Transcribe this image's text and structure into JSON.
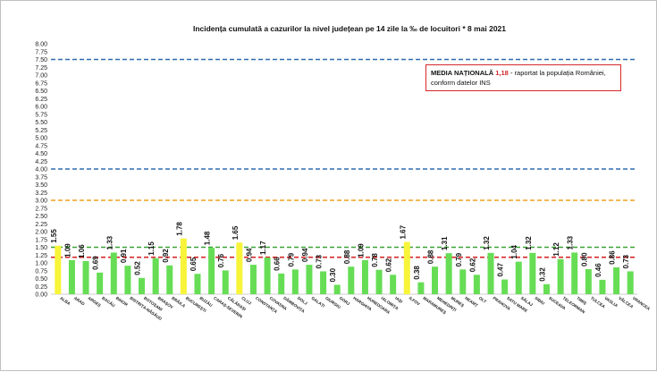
{
  "chart_data": {
    "type": "bar",
    "title": "Incidența cumulată a cazurilor la nivel județean pe 14 zile la ‰ de locuitori *   8 mai 2021",
    "xlabel": "",
    "ylabel": "",
    "ylim": [
      0,
      8
    ],
    "yticks": [
      "0.00",
      "0.25",
      "0.50",
      "0.75",
      "1.00",
      "1.25",
      "1.50",
      "1.75",
      "2.00",
      "2.25",
      "2.50",
      "2.75",
      "3.00",
      "3.25",
      "3.50",
      "3.75",
      "4.00",
      "4.25",
      "4.50",
      "4.75",
      "5.00",
      "5.25",
      "5.50",
      "5.75",
      "6.00",
      "6.25",
      "6.50",
      "6.75",
      "7.00",
      "7.25",
      "7.50",
      "7.75",
      "8.00"
    ],
    "categories": [
      "ALBA",
      "ARAD",
      "ARGEȘ",
      "BACĂU",
      "BIHOR",
      "BISTRIȚA-NĂSĂUD",
      "BOTOȘANI",
      "BRAȘOV",
      "BRĂILA",
      "BUCUREȘTI",
      "BUZĂU",
      "CARAȘ-SEVERIN",
      "CĂLĂRAȘI",
      "CLUJ",
      "CONSTANȚA",
      "COVASNA",
      "DÂMBOVIȚA",
      "DOLJ",
      "GALAȚI",
      "GIURGIU",
      "GORJ",
      "HARGHITA",
      "HUNEDOARA",
      "IALOMIȚA",
      "IAȘI",
      "ILFOV",
      "MARAMUREȘ",
      "MEHEDINȚI",
      "MUREȘ",
      "NEAMȚ",
      "OLT",
      "PRAHOVA",
      "SATU MARE",
      "SĂLAJ",
      "SIBIU",
      "SUCEAVA",
      "TELEORMAN",
      "TIMIȘ",
      "TULCEA",
      "VASLUI",
      "VÂLCEA",
      "VRANCEA"
    ],
    "values": [
      1.55,
      1.09,
      1.06,
      0.69,
      1.33,
      0.91,
      0.52,
      1.15,
      0.92,
      1.78,
      0.65,
      1.48,
      0.76,
      1.65,
      0.94,
      1.17,
      0.66,
      0.79,
      0.94,
      0.73,
      0.3,
      0.88,
      1.09,
      0.78,
      0.62,
      1.67,
      0.38,
      0.88,
      1.31,
      0.79,
      0.62,
      1.32,
      0.47,
      1.04,
      1.32,
      0.32,
      1.12,
      1.33,
      0.8,
      0.46,
      0.86,
      0.73
    ],
    "value_labels": [
      "1.55",
      "1.09",
      "1.06",
      "0.69",
      "1.33",
      "0.91",
      "0.52",
      "1.15",
      "0.92",
      "1.78",
      "0.65",
      "1.48",
      "0.76",
      "1.65",
      "0.94",
      "1.17",
      "0.66",
      "0.79",
      "0.94",
      "0.73",
      "0.30",
      "0.88",
      "1.09",
      "0.78",
      "0.62",
      "1.67",
      "0.38",
      "0.88",
      "1.31",
      "0.79",
      "0.62",
      "1.32",
      "0.47",
      "1.04",
      "1.32",
      "0.32",
      "1.12",
      "1.33",
      "0.80",
      "0.46",
      "0.86",
      "0.73"
    ],
    "highlighted": [
      "ALBA",
      "BUCUREȘTI",
      "CLUJ",
      "ILFOV"
    ],
    "colors": {
      "bar": "#66dd55",
      "highlight": "#f7f43a",
      "national_avg": "#d62728",
      "line_1_5": "#3aa335",
      "line_3": "#f0a020",
      "line_4_75": "#2e6bb0"
    },
    "reference_lines": [
      {
        "value": 1.18,
        "color": "#d62728"
      },
      {
        "value": 1.5,
        "color": "#3aa335"
      },
      {
        "value": 3.0,
        "color": "#f0a020"
      },
      {
        "value": 4.0,
        "color": "#2e6bb0"
      },
      {
        "value": 7.5,
        "color": "#2e6bb0"
      }
    ],
    "grid": false,
    "legend": "none"
  },
  "callout": {
    "label_bold": "MEDIA NAȚIONALĂ",
    "value": "1,18",
    "text1": " - raportat la populația României,",
    "text2": "conform datelor INS"
  }
}
